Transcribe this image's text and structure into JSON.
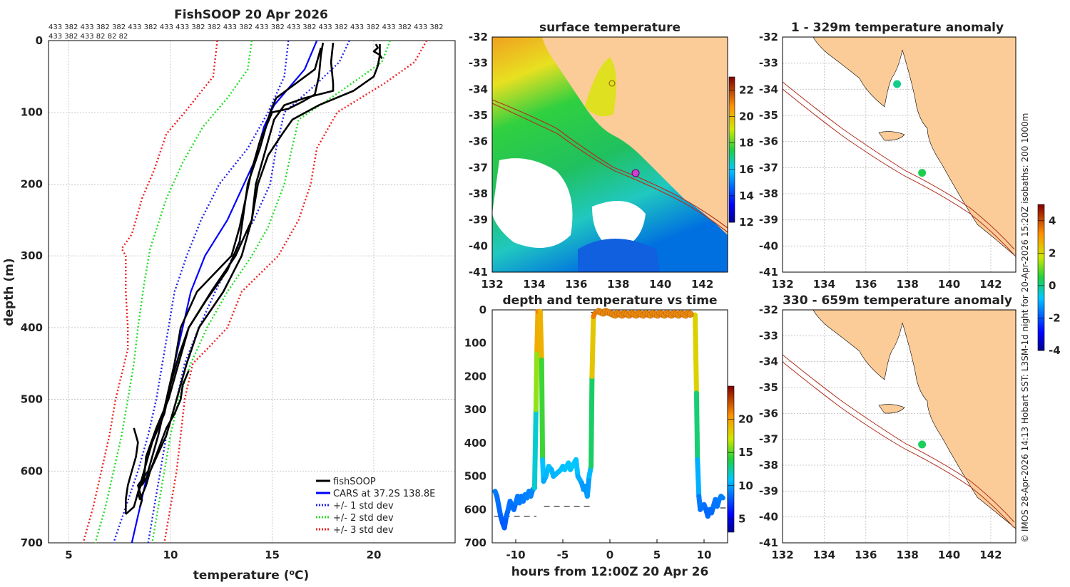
{
  "colors": {
    "land": "#fbcc98",
    "obs": "#000000",
    "cars": "#0000ff",
    "std1": "#2222ee",
    "std2": "#22dd22",
    "std3": "#ee2222",
    "isobath": "#b03020"
  },
  "chart_data": [
    {
      "id": "profile",
      "type": "line",
      "title": "FishSOOP 20 Apr 2026",
      "header_rows": [
        "433 382 433 382 382 433 382 433 433 382 382 433 382 433 382 433 382 433 382 433 382 433 382 433 382",
        "433 382 433 82 82 82"
      ],
      "xlabel": "temperature (",
      "xlabel_sup": "o",
      "xlabel_end": "C)",
      "ylabel": "depth (m)",
      "xlim": [
        4,
        24
      ],
      "ylim": [
        700,
        0
      ],
      "xticks": [
        "5",
        "10",
        "15",
        "20"
      ],
      "yticks": [
        "0",
        "100",
        "200",
        "300",
        "400",
        "500",
        "600",
        "700"
      ],
      "legend": [
        "fishSOOP",
        "CARS at 37.2S 138.8E",
        "+/- 1 std dev",
        "+/- 2 std dev",
        "+/- 3 std dev"
      ],
      "series": [
        {
          "name": "CARS at 37.2S 138.8E",
          "depth": [
            0,
            40,
            70,
            90,
            120,
            170,
            250,
            300,
            350,
            400,
            450,
            500,
            550,
            600,
            650,
            700
          ],
          "temp": [
            17.2,
            16.6,
            15.7,
            15.1,
            14.6,
            14.1,
            12.8,
            11.7,
            11.0,
            10.6,
            10.2,
            9.8,
            9.4,
            8.9,
            8.5,
            8.1
          ]
        },
        {
          "name": "-1 std",
          "depth": [
            0,
            50,
            100,
            150,
            200,
            250,
            300,
            350,
            400,
            450,
            500,
            550,
            600,
            650,
            700
          ],
          "temp": [
            15.8,
            15.6,
            14.8,
            13.8,
            12.4,
            11.5,
            10.8,
            10.2,
            9.9,
            9.6,
            9.3,
            8.9,
            8.4,
            7.8,
            7.2
          ]
        },
        {
          "name": "+1 std",
          "depth": [
            0,
            30,
            60,
            100,
            150,
            200,
            250,
            300,
            350,
            400,
            450,
            500,
            550,
            600,
            650,
            700
          ],
          "temp": [
            18.8,
            18.3,
            17.2,
            15.6,
            15.2,
            14.9,
            14.1,
            13.1,
            12.2,
            11.4,
            10.7,
            10.3,
            9.8,
            9.5,
            9.2,
            8.9
          ]
        },
        {
          "name": "-2 std",
          "depth": [
            0,
            40,
            80,
            120,
            170,
            220,
            290,
            340,
            400,
            450,
            500,
            550,
            600,
            650,
            700
          ],
          "temp": [
            14.0,
            13.8,
            12.8,
            11.6,
            10.6,
            9.8,
            9.0,
            8.7,
            8.4,
            8.2,
            7.9,
            7.6,
            7.2,
            6.8,
            6.3
          ]
        },
        {
          "name": "+2 std",
          "depth": [
            0,
            30,
            70,
            110,
            160,
            200,
            260,
            300,
            350,
            400,
            450,
            500,
            550,
            600,
            650,
            700
          ],
          "temp": [
            20.8,
            20.4,
            18.4,
            16.3,
            15.9,
            15.6,
            14.8,
            14.0,
            12.8,
            11.8,
            11.0,
            10.4,
            10.0,
            9.7,
            9.4,
            9.1
          ]
        },
        {
          "name": "-3 std",
          "depth": [
            0,
            50,
            100,
            130,
            180,
            220,
            270,
            290,
            300,
            350,
            400,
            430,
            500,
            550,
            600,
            650,
            700
          ],
          "temp": [
            12.3,
            12.1,
            10.7,
            9.8,
            9.2,
            8.6,
            8.1,
            7.6,
            7.8,
            7.8,
            7.9,
            7.9,
            7.3,
            7.0,
            6.6,
            6.2,
            5.7
          ]
        },
        {
          "name": "+3 std",
          "depth": [
            0,
            30,
            60,
            100,
            150,
            200,
            250,
            300,
            350,
            400,
            430,
            450,
            500,
            550,
            600,
            650,
            700
          ],
          "temp": [
            22.6,
            22.0,
            20.5,
            18.2,
            17.2,
            16.9,
            16.3,
            15.3,
            13.5,
            12.8,
            11.8,
            11.1,
            10.7,
            10.5,
            10.3,
            10.0,
            9.7
          ]
        },
        {
          "name": "fishSOOP",
          "depth": [
            3,
            20,
            50,
            75,
            85,
            95,
            100,
            140,
            180,
            220,
            260,
            300,
            350,
            400,
            450,
            500,
            550,
            600,
            620,
            640,
            650
          ],
          "temp": [
            17.5,
            17.4,
            17.3,
            17.1,
            16.5,
            15.8,
            15.0,
            14.4,
            14.0,
            13.7,
            13.4,
            13.0,
            11.3,
            10.5,
            10.2,
            9.8,
            9.4,
            8.9,
            8.4,
            8.6,
            8.5
          ]
        },
        {
          "name": "fishSOOP",
          "depth": [
            3,
            30,
            60,
            70,
            80,
            90,
            110,
            160,
            200,
            250,
            300,
            350,
            400,
            450,
            500,
            540,
            580,
            610,
            630,
            640
          ],
          "temp": [
            18.0,
            17.9,
            18.0,
            18.0,
            16.6,
            15.6,
            15.1,
            14.6,
            14.2,
            14.0,
            13.2,
            12.0,
            10.9,
            10.4,
            9.9,
            9.3,
            8.8,
            8.7,
            8.4,
            8.5
          ]
        },
        {
          "name": "fishSOOP",
          "depth": [
            10,
            40,
            80,
            100,
            150,
            200,
            240,
            280,
            320,
            360,
            400,
            440,
            480,
            520,
            560,
            600,
            630,
            650,
            660
          ],
          "temp": [
            17.4,
            17.1,
            15.2,
            14.9,
            14.4,
            13.8,
            13.6,
            13.4,
            12.8,
            11.8,
            10.9,
            10.4,
            10.0,
            9.7,
            9.1,
            8.7,
            8.4,
            8.2,
            7.8
          ]
        },
        {
          "name": "fishSOOP",
          "depth": [
            5,
            20,
            35,
            50,
            70,
            90,
            110,
            130,
            160,
            200,
            250,
            300,
            350,
            400,
            450,
            500,
            550,
            600,
            620
          ],
          "temp": [
            20.3,
            20.3,
            20.2,
            20.0,
            19.0,
            17.3,
            16.0,
            15.5,
            14.8,
            14.3,
            14.0,
            13.5,
            12.6,
            11.4,
            10.8,
            10.3,
            9.8,
            9.0,
            8.6
          ]
        },
        {
          "name": "fishSOOP",
          "depth": [
            460,
            480,
            500,
            520,
            540,
            570,
            600,
            620,
            640
          ],
          "temp": [
            10.9,
            10.6,
            10.5,
            10.2,
            9.8,
            9.4,
            9.0,
            8.8,
            8.5
          ]
        },
        {
          "name": "fishSOOP",
          "depth": [
            540,
            560,
            580,
            600,
            620,
            640,
            660
          ],
          "temp": [
            8.2,
            8.4,
            8.3,
            8.1,
            7.9,
            7.8,
            7.8
          ]
        },
        {
          "name": "fishSOOP",
          "depth": [
            5,
            10,
            15,
            20,
            25
          ],
          "temp": [
            20.1,
            20.2,
            20.0,
            20.3,
            20.4
          ]
        }
      ]
    },
    {
      "id": "sst",
      "type": "heatmap",
      "title": "surface temperature",
      "xticks": [
        "132",
        "134",
        "136",
        "138",
        "140",
        "142"
      ],
      "yticks": [
        "-32",
        "-33",
        "-34",
        "-35",
        "-36",
        "-37",
        "-38",
        "-39",
        "-40",
        "-41"
      ],
      "xlim": [
        132,
        143.2
      ],
      "ylim": [
        -41,
        -32
      ],
      "colorbar": {
        "min": 12,
        "max": 23,
        "ticks": [
          "12",
          "14",
          "16",
          "18",
          "20",
          "22"
        ]
      },
      "fishing_location": [
        138.8,
        -37.2
      ]
    },
    {
      "id": "depth_time",
      "type": "scatter",
      "title": "depth and temperature vs time",
      "xlabel": "hours from 12:00Z 20 Apr 26",
      "xlim": [
        -12.5,
        12.5
      ],
      "ylim": [
        700,
        0
      ],
      "xticks": [
        "-10",
        "-5",
        "0",
        "5",
        "10"
      ],
      "yticks": [
        "0",
        "100",
        "200",
        "300",
        "400",
        "500",
        "600",
        "700"
      ],
      "colorbar": {
        "min": 3,
        "max": 25,
        "ticks": [
          "5",
          "10",
          "15",
          "20"
        ]
      },
      "track": [
        [
          -12.2,
          545,
          9
        ],
        [
          -12.0,
          560,
          8.8
        ],
        [
          -11.8,
          590,
          8.6
        ],
        [
          -11.6,
          620,
          8.3
        ],
        [
          -11.4,
          640,
          8
        ],
        [
          -11.2,
          655,
          7.9
        ],
        [
          -11.0,
          620,
          8.2
        ],
        [
          -10.8,
          600,
          8.5
        ],
        [
          -10.6,
          575,
          8.8
        ],
        [
          -10.4,
          590,
          8.6
        ],
        [
          -10.2,
          600,
          8.4
        ],
        [
          -10.0,
          580,
          8.7
        ],
        [
          -9.8,
          560,
          9
        ],
        [
          -9.6,
          580,
          8.8
        ],
        [
          -9.4,
          560,
          9
        ],
        [
          -9.2,
          575,
          8.8
        ],
        [
          -9.0,
          555,
          9.1
        ],
        [
          -8.8,
          565,
          9
        ],
        [
          -8.6,
          545,
          9.2
        ],
        [
          -8.4,
          560,
          9
        ],
        [
          -8.2,
          540,
          9.3
        ],
        [
          -8.0,
          535,
          9.3
        ],
        [
          -7.85,
          300,
          14
        ],
        [
          -7.75,
          120,
          18
        ],
        [
          -7.65,
          5,
          21
        ],
        [
          -7.4,
          5,
          21
        ],
        [
          -7.25,
          150,
          17.5
        ],
        [
          -7.15,
          450,
          11.5
        ],
        [
          -7.05,
          515,
          10
        ],
        [
          -6.8,
          500,
          10.2
        ],
        [
          -6.5,
          470,
          10.8
        ],
        [
          -6.2,
          480,
          10.6
        ],
        [
          -6.0,
          500,
          10.3
        ],
        [
          -5.6,
          490,
          10.5
        ],
        [
          -5.2,
          480,
          10.6
        ],
        [
          -5.0,
          470,
          10.8
        ],
        [
          -4.8,
          480,
          10.6
        ],
        [
          -4.6,
          470,
          10.8
        ],
        [
          -4.4,
          460,
          11
        ],
        [
          -4.2,
          480,
          10.6
        ],
        [
          -4.0,
          470,
          10.8
        ],
        [
          -3.6,
          450,
          11.2
        ],
        [
          -3.4,
          500,
          10.4
        ],
        [
          -3.0,
          520,
          10
        ],
        [
          -2.8,
          540,
          9.6
        ],
        [
          -2.6,
          530,
          9.8
        ],
        [
          -2.4,
          560,
          9.2
        ],
        [
          -2.2,
          500,
          10.3
        ],
        [
          -2.0,
          470,
          10.8
        ],
        [
          -1.9,
          200,
          16
        ],
        [
          -1.75,
          20,
          21
        ],
        [
          -1.6,
          10,
          21.5
        ]
      ],
      "surface_hours": [
        -1.2,
        8.6
      ],
      "track2": [
        [
          9.05,
          15,
          21
        ],
        [
          9.2,
          250,
          15
        ],
        [
          9.3,
          450,
          11.3
        ],
        [
          9.45,
          560,
          9.2
        ],
        [
          9.6,
          600,
          8.6
        ],
        [
          9.8,
          590,
          8.7
        ],
        [
          10.0,
          585,
          8.8
        ],
        [
          10.2,
          600,
          8.5
        ],
        [
          10.4,
          620,
          8.3
        ],
        [
          10.6,
          600,
          8.5
        ],
        [
          10.8,
          610,
          8.4
        ],
        [
          11.0,
          590,
          8.6
        ],
        [
          11.2,
          570,
          8.9
        ],
        [
          11.4,
          590,
          8.6
        ],
        [
          11.6,
          570,
          8.9
        ],
        [
          11.8,
          560,
          9
        ],
        [
          12.0,
          565,
          9
        ]
      ],
      "dashes": [
        {
          "x": [
            -12.3,
            -7.8
          ],
          "y": 620
        },
        {
          "x": [
            -7.0,
            -1.8
          ],
          "y": 590
        },
        {
          "x": [
            -2.0,
            8.7
          ],
          "y": 8
        },
        {
          "x": [
            9.6,
            12.3
          ],
          "y": 595
        }
      ]
    },
    {
      "id": "anom_shallow",
      "type": "heatmap",
      "title": "1 - 329m temperature anomaly",
      "xticks": [
        "132",
        "134",
        "136",
        "138",
        "140",
        "142"
      ],
      "yticks": [
        "-32",
        "-33",
        "-34",
        "-35",
        "-36",
        "-37",
        "-38",
        "-39",
        "-40",
        "-41"
      ],
      "points": [
        [
          137.5,
          -33.8,
          0
        ],
        [
          138.7,
          -37.2,
          0.4
        ]
      ]
    },
    {
      "id": "anom_deep",
      "type": "heatmap",
      "title": "330 - 659m temperature anomaly",
      "xticks": [
        "132",
        "134",
        "136",
        "138",
        "140",
        "142"
      ],
      "yticks": [
        "-32",
        "-33",
        "-34",
        "-35",
        "-36",
        "-37",
        "-38",
        "-39",
        "-40",
        "-41"
      ],
      "points": [
        [
          138.7,
          -37.2,
          0.3
        ]
      ]
    }
  ],
  "anomaly_colorbar": {
    "min": -4,
    "max": 5,
    "ticks": [
      "4",
      "2",
      "0",
      "-2",
      "-4"
    ]
  },
  "credit": "© IMOS 28-Apr-2026 14:13 Hobart SST: L3SM-1d night for 20-Apr-2026 15:20Z isobaths: 200  1000m"
}
